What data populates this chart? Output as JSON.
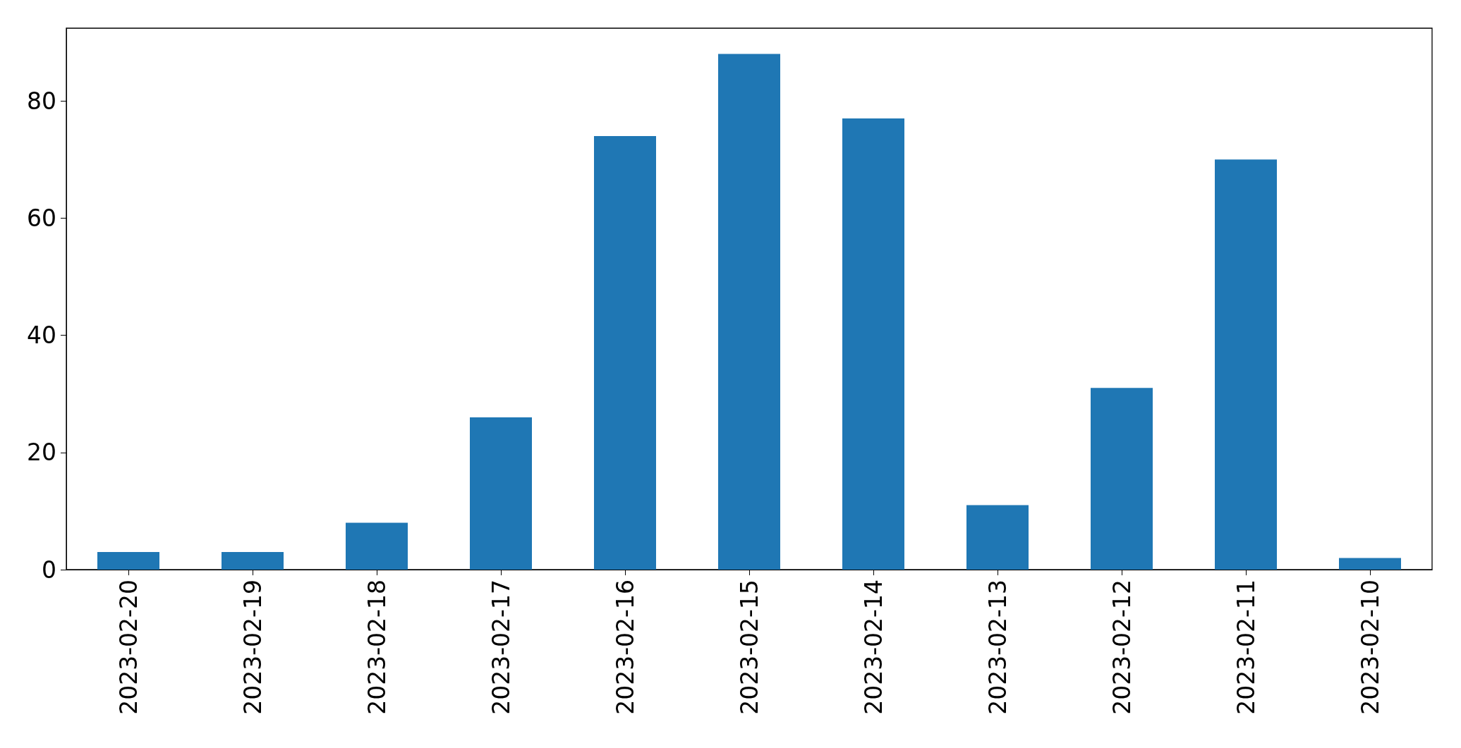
{
  "chart_data": {
    "type": "bar",
    "categories": [
      "2023-02-20",
      "2023-02-19",
      "2023-02-18",
      "2023-02-17",
      "2023-02-16",
      "2023-02-15",
      "2023-02-14",
      "2023-02-13",
      "2023-02-12",
      "2023-02-11",
      "2023-02-10"
    ],
    "values": [
      3,
      3,
      8,
      26,
      74,
      88,
      77,
      11,
      31,
      70,
      2
    ],
    "color": "#1f77b4",
    "ylim": [
      0,
      92.4
    ],
    "yticks": [
      0,
      20,
      40,
      60,
      80
    ],
    "grid": false
  }
}
